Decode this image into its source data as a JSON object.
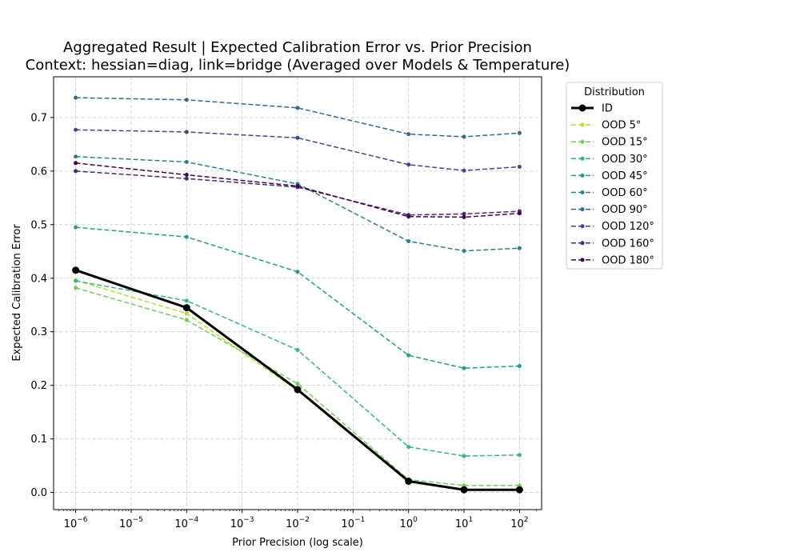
{
  "chart_data": {
    "type": "line",
    "title": "Aggregated Result | Expected Calibration Error vs. Prior Precision",
    "subtitle": "Context: hessian=diag, link=bridge (Averaged over Models & Temperature)",
    "xlabel": "Prior Precision (log scale)",
    "ylabel": "Expected Calibration Error",
    "xscale": "log",
    "grid": true,
    "x": [
      1e-06,
      0.0001,
      0.01,
      1,
      10,
      100
    ],
    "xlim": [
      4e-07,
      250
    ],
    "ylim": [
      -0.032,
      0.776
    ],
    "x_ticks": [
      {
        "value": 1e-06,
        "base": "10",
        "exp": "−6"
      },
      {
        "value": 1e-05,
        "base": "10",
        "exp": "−5"
      },
      {
        "value": 0.0001,
        "base": "10",
        "exp": "−4"
      },
      {
        "value": 0.001,
        "base": "10",
        "exp": "−3"
      },
      {
        "value": 0.01,
        "base": "10",
        "exp": "−2"
      },
      {
        "value": 0.1,
        "base": "10",
        "exp": "−1"
      },
      {
        "value": 1,
        "base": "10",
        "exp": "0"
      },
      {
        "value": 10,
        "base": "10",
        "exp": "1"
      },
      {
        "value": 100,
        "base": "10",
        "exp": "2"
      }
    ],
    "y_ticks": [
      {
        "value": 0.0,
        "label": "0.0"
      },
      {
        "value": 0.1,
        "label": "0.1"
      },
      {
        "value": 0.2,
        "label": "0.2"
      },
      {
        "value": 0.3,
        "label": "0.3"
      },
      {
        "value": 0.4,
        "label": "0.4"
      },
      {
        "value": 0.5,
        "label": "0.5"
      },
      {
        "value": 0.6,
        "label": "0.6"
      },
      {
        "value": 0.7,
        "label": "0.7"
      }
    ],
    "legend": {
      "title": "Distribution",
      "placement": "outside-right-top"
    },
    "series": [
      {
        "name": "ID",
        "color": "#000000",
        "style": "solid",
        "values": [
          0.415,
          0.345,
          0.192,
          0.021,
          0.005,
          0.005
        ]
      },
      {
        "name": "OOD 5°",
        "color": "#b5de2b",
        "style": "dashed",
        "values": [
          0.396,
          0.334,
          0.19,
          0.019,
          0.004,
          0.004
        ]
      },
      {
        "name": "OOD 15°",
        "color": "#6ece58",
        "style": "dashed",
        "values": [
          0.382,
          0.322,
          0.203,
          0.024,
          0.013,
          0.013
        ]
      },
      {
        "name": "OOD 30°",
        "color": "#35b779",
        "style": "dashed",
        "values": [
          0.395,
          0.358,
          0.266,
          0.085,
          0.068,
          0.07
        ]
      },
      {
        "name": "OOD 45°",
        "color": "#1f9e89",
        "style": "dashed",
        "values": [
          0.495,
          0.477,
          0.412,
          0.256,
          0.232,
          0.236
        ]
      },
      {
        "name": "OOD 60°",
        "color": "#26828e",
        "style": "dashed",
        "values": [
          0.627,
          0.617,
          0.576,
          0.469,
          0.451,
          0.456
        ]
      },
      {
        "name": "OOD 90°",
        "color": "#31688e",
        "style": "dashed",
        "values": [
          0.737,
          0.733,
          0.718,
          0.669,
          0.664,
          0.671
        ]
      },
      {
        "name": "OOD 120°",
        "color": "#3e4989",
        "style": "dashed",
        "values": [
          0.677,
          0.673,
          0.662,
          0.612,
          0.601,
          0.608
        ]
      },
      {
        "name": "OOD 160°",
        "color": "#482878",
        "style": "dashed",
        "values": [
          0.6,
          0.586,
          0.57,
          0.518,
          0.52,
          0.525
        ]
      },
      {
        "name": "OOD 180°",
        "color": "#440154",
        "style": "dashed",
        "values": [
          0.615,
          0.593,
          0.572,
          0.515,
          0.514,
          0.521
        ]
      }
    ]
  }
}
